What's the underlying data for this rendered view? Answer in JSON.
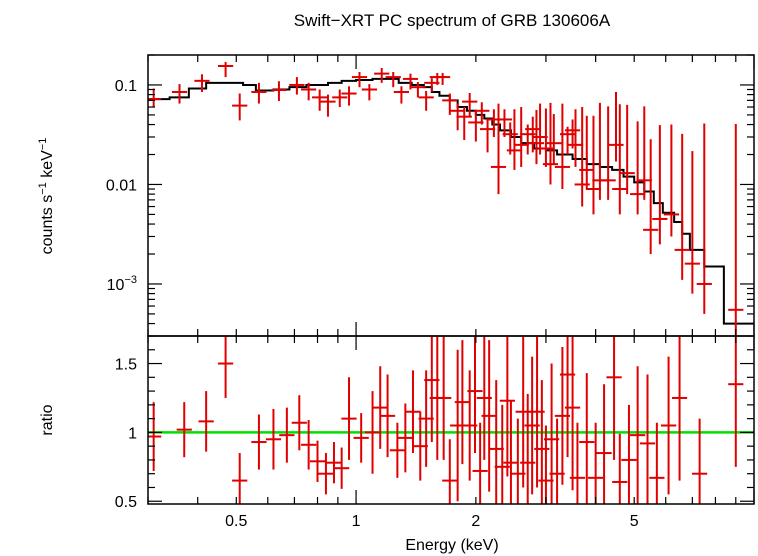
{
  "title": "Swift−XRT PC spectrum of GRB 130606A",
  "colors": {
    "data": "#e00000",
    "model": "#000000",
    "unity": "#00e000",
    "frame": "#000000"
  },
  "chart_data": [
    {
      "type": "scatter",
      "panel": "spectrum",
      "ylabel": {
        "main": "counts s",
        "exp1": "−1",
        "mid": " keV",
        "exp2": "−1"
      },
      "x_scale": "log",
      "y_scale": "log",
      "xlim": [
        0.3,
        10
      ],
      "ylim": [
        0.0003,
        0.2
      ],
      "yticks": [
        {
          "v": 0.1,
          "label": "0.1"
        },
        {
          "v": 0.01,
          "label": "0.01"
        },
        {
          "v": 0.001,
          "base": "10",
          "exp": "−3"
        }
      ],
      "series": [
        {
          "kind": "data",
          "points": [
            [
              0.31,
              0.072,
              0.02,
              0.012
            ],
            [
              0.36,
              0.085,
              0.017,
              0.02
            ],
            [
              0.41,
              0.11,
              0.018,
              0.025
            ],
            [
              0.47,
              0.155,
              0.015,
              0.035
            ],
            [
              0.51,
              0.062,
              0.02,
              0.018
            ],
            [
              0.57,
              0.085,
              0.02,
              0.02
            ],
            [
              0.64,
              0.089,
              0.02,
              0.02
            ],
            [
              0.71,
              0.1,
              0.02,
              0.02
            ],
            [
              0.76,
              0.09,
              0.015,
              0.02
            ],
            [
              0.81,
              0.075,
              0.015,
              0.02
            ],
            [
              0.85,
              0.068,
              0.012,
              0.02
            ],
            [
              0.91,
              0.075,
              0.015,
              0.015
            ],
            [
              0.96,
              0.082,
              0.015,
              0.02
            ],
            [
              1.02,
              0.12,
              0.015,
              0.025
            ],
            [
              1.08,
              0.09,
              0.012,
              0.02
            ],
            [
              1.16,
              0.13,
              0.018,
              0.025
            ],
            [
              1.24,
              0.12,
              0.015,
              0.025
            ],
            [
              1.3,
              0.085,
              0.012,
              0.02
            ],
            [
              1.37,
              0.115,
              0.015,
              0.025
            ],
            [
              1.43,
              0.095,
              0.012,
              0.02
            ],
            [
              1.5,
              0.075,
              0.012,
              0.02
            ],
            [
              1.55,
              0.105,
              0.012,
              0.02
            ],
            [
              1.6,
              0.12,
              0.012,
              0.02
            ],
            [
              1.65,
              0.12,
              0.012,
              0.02
            ],
            [
              1.72,
              0.07,
              0.012,
              0.02
            ],
            [
              1.8,
              0.055,
              0.01,
              0.02
            ],
            [
              1.87,
              0.048,
              0.012,
              0.02
            ],
            [
              1.93,
              0.068,
              0.015,
              0.02
            ],
            [
              2.0,
              0.042,
              0.012,
              0.015
            ],
            [
              2.07,
              0.055,
              0.012,
              0.015
            ],
            [
              2.14,
              0.036,
              0.01,
              0.015
            ],
            [
              2.22,
              0.045,
              0.012,
              0.015
            ],
            [
              2.28,
              0.015,
              0.05,
              0.007
            ],
            [
              2.36,
              0.045,
              0.012,
              0.015
            ],
            [
              2.44,
              0.032,
              0.01,
              0.012
            ],
            [
              2.5,
              0.022,
              0.035,
              0.008
            ],
            [
              2.6,
              0.025,
              0.035,
              0.01
            ],
            [
              2.7,
              0.032,
              0.008,
              0.012
            ],
            [
              2.78,
              0.036,
              0.012,
              0.015
            ],
            [
              2.84,
              0.026,
              0.03,
              0.01
            ],
            [
              2.9,
              0.03,
              0.035,
              0.01
            ],
            [
              3.0,
              0.023,
              0.035,
              0.008
            ],
            [
              3.08,
              0.016,
              0.05,
              0.006
            ],
            [
              3.14,
              0.026,
              0.025,
              0.01
            ],
            [
              3.3,
              0.015,
              0.05,
              0.006
            ],
            [
              3.4,
              0.032,
              0.006,
              0.012
            ],
            [
              3.5,
              0.035,
              0.01,
              0.012
            ],
            [
              3.56,
              0.025,
              0.032,
              0.01
            ],
            [
              3.7,
              0.01,
              0.05,
              0.004
            ],
            [
              3.8,
              0.014,
              0.035,
              0.005
            ],
            [
              3.95,
              0.009,
              0.04,
              0.004
            ],
            [
              4.1,
              0.011,
              0.055,
              0.004
            ],
            [
              4.3,
              0.011,
              0.05,
              0.004
            ],
            [
              4.5,
              0.025,
              0.06,
              0.008
            ],
            [
              4.6,
              0.009,
              0.055,
              0.004
            ],
            [
              4.8,
              0.013,
              0.05,
              0.005
            ],
            [
              5.1,
              0.008,
              0.035,
              0.003
            ],
            [
              5.3,
              0.011,
              0.05,
              0.004
            ],
            [
              5.5,
              0.0035,
              0.025,
              0.0015
            ],
            [
              5.8,
              0.0045,
              0.035,
              0.002
            ],
            [
              6.2,
              0.005,
              0.035,
              0.002
            ],
            [
              6.6,
              0.0022,
              0.03,
              0.0011
            ],
            [
              7.0,
              0.0016,
              0.02,
              0.0008
            ],
            [
              7.5,
              0.001,
              0.04,
              0.0005
            ],
            [
              9.0,
              0.00055,
              0.04,
              0.00025
            ]
          ]
        },
        {
          "kind": "model",
          "steps": [
            [
              0.3,
              0.072
            ],
            [
              0.34,
              0.075
            ],
            [
              0.38,
              0.092
            ],
            [
              0.42,
              0.105
            ],
            [
              0.47,
              0.105
            ],
            [
              0.52,
              0.1
            ],
            [
              0.56,
              0.088
            ],
            [
              0.62,
              0.09
            ],
            [
              0.68,
              0.095
            ],
            [
              0.75,
              0.1
            ],
            [
              0.8,
              0.1
            ],
            [
              0.85,
              0.105
            ],
            [
              0.92,
              0.11
            ],
            [
              1.0,
              0.112
            ],
            [
              1.1,
              0.115
            ],
            [
              1.2,
              0.115
            ],
            [
              1.28,
              0.105
            ],
            [
              1.38,
              0.1
            ],
            [
              1.48,
              0.095
            ],
            [
              1.55,
              0.085
            ],
            [
              1.62,
              0.078
            ],
            [
              1.72,
              0.07
            ],
            [
              1.8,
              0.06
            ],
            [
              1.9,
              0.055
            ],
            [
              2.0,
              0.05
            ],
            [
              2.1,
              0.046
            ],
            [
              2.2,
              0.04
            ],
            [
              2.3,
              0.035
            ],
            [
              2.45,
              0.03
            ],
            [
              2.6,
              0.026
            ],
            [
              2.8,
              0.023
            ],
            [
              3.0,
              0.022
            ],
            [
              3.2,
              0.02
            ],
            [
              3.5,
              0.018
            ],
            [
              3.8,
              0.016
            ],
            [
              4.1,
              0.015
            ],
            [
              4.4,
              0.014
            ],
            [
              4.7,
              0.012
            ],
            [
              5.0,
              0.0105
            ],
            [
              5.3,
              0.0085
            ],
            [
              5.6,
              0.0065
            ],
            [
              5.9,
              0.0052
            ],
            [
              6.3,
              0.0042
            ],
            [
              6.6,
              0.0032
            ],
            [
              6.9,
              0.0022
            ],
            [
              7.5,
              0.0015
            ],
            [
              8.4,
              0.0004
            ],
            [
              10,
              0.0004
            ]
          ]
        }
      ]
    },
    {
      "type": "scatter",
      "panel": "ratio",
      "xlabel": "Energy (keV)",
      "ylabel": "ratio",
      "x_scale": "log",
      "y_scale": "linear",
      "xlim": [
        0.3,
        10
      ],
      "ylim": [
        0.48,
        1.7
      ],
      "xticks": [
        {
          "v": 0.5,
          "label": "0.5"
        },
        {
          "v": 1,
          "label": "1"
        },
        {
          "v": 2,
          "label": "2"
        },
        {
          "v": 5,
          "label": "5"
        }
      ],
      "yticks": [
        {
          "v": 0.5,
          "label": "0.5"
        },
        {
          "v": 1,
          "label": "1"
        },
        {
          "v": 1.5,
          "label": "1.5"
        }
      ],
      "reference_line": 1,
      "series": [
        {
          "kind": "data",
          "points": [
            [
              0.31,
              0.97,
              0.25,
              0.25
            ],
            [
              0.37,
              1.02,
              0.2,
              0.2
            ],
            [
              0.42,
              1.08,
              0.22,
              0.22
            ],
            [
              0.47,
              1.5,
              0.25,
              0.25
            ],
            [
              0.51,
              0.65,
              0.2,
              0.2
            ],
            [
              0.57,
              0.93,
              0.2,
              0.2
            ],
            [
              0.62,
              0.95,
              0.22,
              0.22
            ],
            [
              0.67,
              0.98,
              0.2,
              0.2
            ],
            [
              0.72,
              1.07,
              0.2,
              0.2
            ],
            [
              0.76,
              0.91,
              0.18,
              0.18
            ],
            [
              0.8,
              0.79,
              0.15,
              0.15
            ],
            [
              0.84,
              0.7,
              0.15,
              0.15
            ],
            [
              0.88,
              0.78,
              0.15,
              0.15
            ],
            [
              0.92,
              0.74,
              0.15,
              0.15
            ],
            [
              0.96,
              1.1,
              0.3,
              0.3
            ],
            [
              1.03,
              0.96,
              0.18,
              0.18
            ],
            [
              1.1,
              1.0,
              0.3,
              0.3
            ],
            [
              1.15,
              1.18,
              0.3,
              0.3
            ],
            [
              1.2,
              1.12,
              0.3,
              0.3
            ],
            [
              1.27,
              0.87,
              0.2,
              0.2
            ],
            [
              1.33,
              0.96,
              0.25,
              0.25
            ],
            [
              1.39,
              1.15,
              0.3,
              0.3
            ],
            [
              1.45,
              0.9,
              0.25,
              0.25
            ],
            [
              1.5,
              1.1,
              0.35,
              0.35
            ],
            [
              1.55,
              1.38,
              0.45,
              0.45
            ],
            [
              1.6,
              1.25,
              0.45,
              0.45
            ],
            [
              1.66,
              1.25,
              0.45,
              0.45
            ],
            [
              1.72,
              0.65,
              0.3,
              0.3
            ],
            [
              1.8,
              1.05,
              0.55,
              0.55
            ],
            [
              1.85,
              1.22,
              0.45,
              0.45
            ],
            [
              1.93,
              1.05,
              0.4,
              0.4
            ],
            [
              1.99,
              1.3,
              0.45,
              0.45
            ],
            [
              2.05,
              0.72,
              0.35,
              0.35
            ],
            [
              2.1,
              1.25,
              0.45,
              0.45
            ],
            [
              2.16,
              1.12,
              0.55,
              0.55
            ],
            [
              2.25,
              0.88,
              0.5,
              0.5
            ],
            [
              2.33,
              0.75,
              0.45,
              0.45
            ],
            [
              2.4,
              1.23,
              0.55,
              0.55
            ],
            [
              2.45,
              0.78,
              0.45,
              0.45
            ],
            [
              2.55,
              0.7,
              0.4,
              0.4
            ],
            [
              2.63,
              1.15,
              0.55,
              0.55
            ],
            [
              2.7,
              0.78,
              0.5,
              0.5
            ],
            [
              2.77,
              1.05,
              0.5,
              0.5
            ],
            [
              2.85,
              1.15,
              0.55,
              0.55
            ],
            [
              2.93,
              0.88,
              0.5,
              0.5
            ],
            [
              3.0,
              0.65,
              0.4,
              0.4
            ],
            [
              3.1,
              0.95,
              0.55,
              0.55
            ],
            [
              3.2,
              0.7,
              0.4,
              0.4
            ],
            [
              3.3,
              1.12,
              0.5,
              0.5
            ],
            [
              3.4,
              1.42,
              0.6,
              0.6
            ],
            [
              3.5,
              1.18,
              0.6,
              0.6
            ],
            [
              3.6,
              0.67,
              0.4,
              0.4
            ],
            [
              3.8,
              0.93,
              0.5,
              0.5
            ],
            [
              4.0,
              0.67,
              0.4,
              0.4
            ],
            [
              4.2,
              0.85,
              0.5,
              0.5
            ],
            [
              4.45,
              1.4,
              0.6,
              0.6
            ],
            [
              4.6,
              0.64,
              0.35,
              0.35
            ],
            [
              4.85,
              0.8,
              0.4,
              0.4
            ],
            [
              5.1,
              0.98,
              0.5,
              0.5
            ],
            [
              5.4,
              0.92,
              0.5,
              0.5
            ],
            [
              5.7,
              0.67,
              0.4,
              0.4
            ],
            [
              6.1,
              1.05,
              0.5,
              0.5
            ],
            [
              6.5,
              1.25,
              0.6,
              0.6
            ],
            [
              7.3,
              0.7,
              0.4,
              0.4
            ],
            [
              9.0,
              1.35,
              0.6,
              0.6
            ]
          ]
        }
      ]
    }
  ]
}
